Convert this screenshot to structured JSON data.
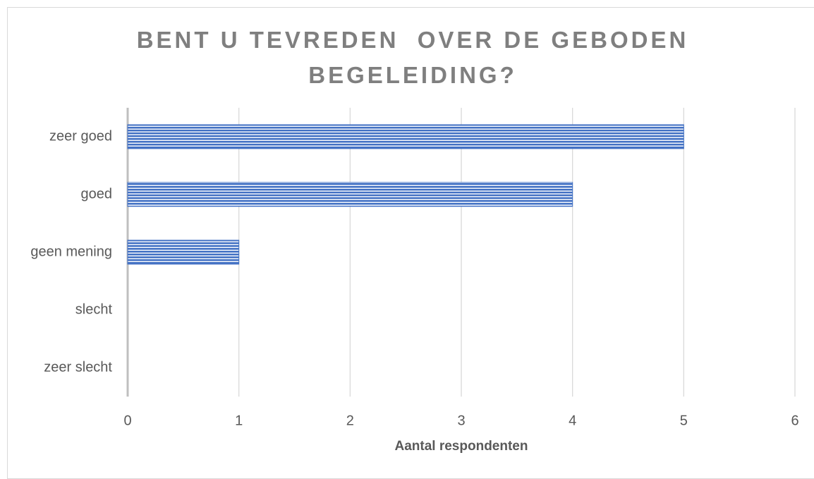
{
  "chart_data": {
    "type": "bar",
    "orientation": "horizontal",
    "title": "BENT U TEVREDEN  OVER DE GEBODEN BEGELEIDING?",
    "x_label": "Aantal respondenten",
    "categories": [
      "zeer goed",
      "goed",
      "geen mening",
      "slecht",
      "zeer slecht"
    ],
    "values": [
      5,
      4,
      1,
      0,
      0
    ],
    "color": "#4472c4",
    "xlim": [
      0,
      6
    ],
    "xticks": [
      0,
      1,
      2,
      3,
      4,
      5,
      6
    ],
    "grid": true
  }
}
